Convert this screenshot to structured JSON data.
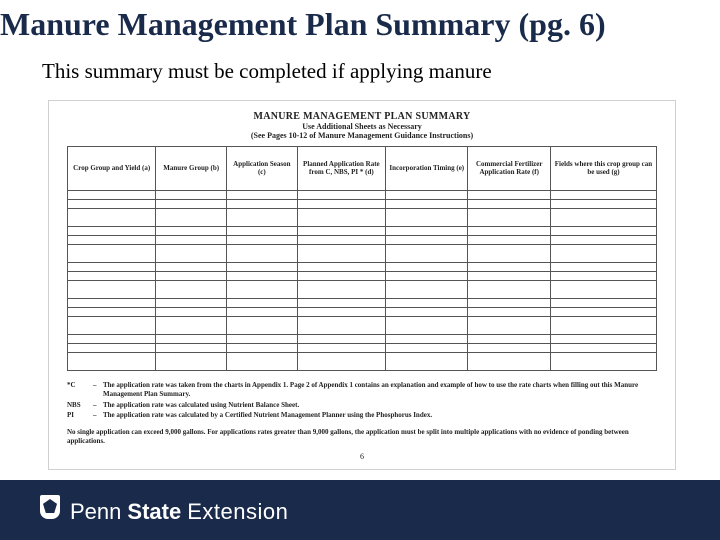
{
  "title": "Manure Management Plan Summary (pg. 6)",
  "subtitle": "This summary must be completed if applying manure",
  "doc": {
    "heading": "MANURE MANAGEMENT PLAN SUMMARY",
    "sub1": "Use Additional Sheets as Necessary",
    "sub2": "(See Pages 10-12 of Manure Management Guidance Instructions)",
    "pageNumber": "6"
  },
  "table": {
    "columns": [
      {
        "label": "Crop Group and Yield (a)",
        "width": "15%"
      },
      {
        "label": "Manure Group (b)",
        "width": "12%"
      },
      {
        "label": "Application Season (c)",
        "width": "12%"
      },
      {
        "label": "Planned Application Rate from C, NBS, PI * (d)",
        "width": "15%"
      },
      {
        "label": "Incorporation Timing (e)",
        "width": "14%"
      },
      {
        "label": "Commercial Fertilizer Application Rate (f)",
        "width": "14%"
      },
      {
        "label": "Fields where this crop group can be used (g)",
        "width": "18%"
      }
    ],
    "rowPattern": [
      "half",
      "half",
      "full",
      "half",
      "half",
      "full",
      "half",
      "half",
      "full",
      "half",
      "half",
      "full",
      "half",
      "half",
      "full"
    ]
  },
  "notes": {
    "items": [
      {
        "key": "*C",
        "dash": "–",
        "text": "The application rate was taken from the charts in Appendix 1.  Page 2 of Appendix 1 contains an explanation and example of how to use the rate charts when filling out this Manure Management Plan Summary."
      },
      {
        "key": "NBS",
        "dash": "–",
        "text": "The application rate was calculated using Nutrient Balance Sheet."
      },
      {
        "key": "PI",
        "dash": "–",
        "text": "The application rate was calculated by a Certified Nutrient Management Planner using the Phosphorus Index."
      }
    ],
    "footer": "No single application can exceed 9,000 gallons.  For applications rates greater than 9,000 gallons, the application must be split into multiple applications with no evidence of ponding between applications."
  },
  "brand": {
    "penn": "Penn",
    "state": "State",
    "ext": "Extension"
  },
  "colors": {
    "navy": "#1a2a4a",
    "white": "#ffffff",
    "docBorder": "#d0d0d0",
    "cellBorder": "#555555",
    "text": "#000000"
  },
  "typography": {
    "titleSize": 32,
    "subtitleSize": 21,
    "docTitleSize": 10,
    "docBodySize": 8,
    "tableHeaderSize": 7,
    "brandSize": 22
  }
}
